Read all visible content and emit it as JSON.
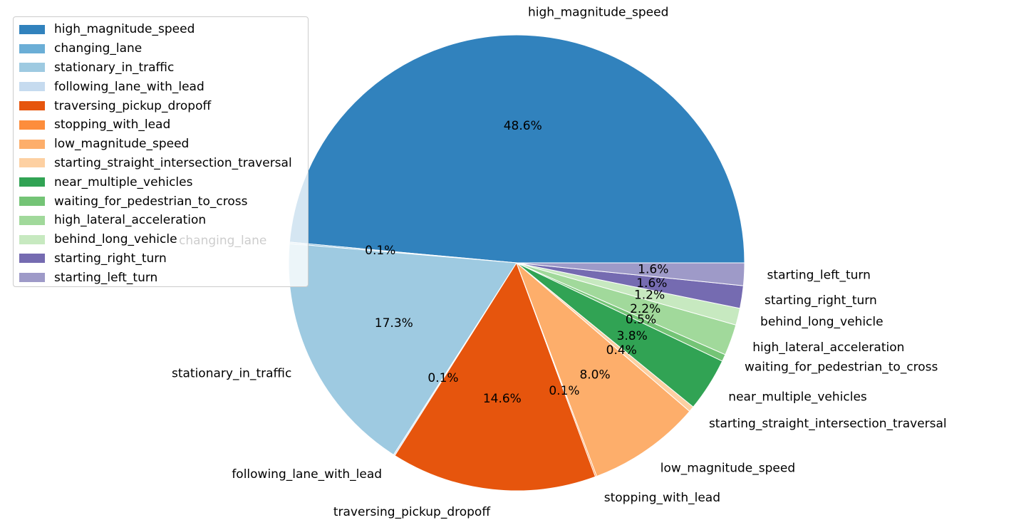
{
  "chart_data": {
    "type": "pie",
    "title": "",
    "slices": [
      {
        "label": "high_magnitude_speed",
        "pct_label": "48.6%",
        "value": 48.6,
        "color": "#3182bd"
      },
      {
        "label": "changing_lane",
        "pct_label": "0.1%",
        "value": 0.1,
        "color": "#6baed6"
      },
      {
        "label": "stationary_in_traffic",
        "pct_label": "17.3%",
        "value": 17.3,
        "color": "#9ecae1"
      },
      {
        "label": "following_lane_with_lead",
        "pct_label": "0.1%",
        "value": 0.1,
        "color": "#c6dbef"
      },
      {
        "label": "traversing_pickup_dropoff",
        "pct_label": "14.6%",
        "value": 14.6,
        "color": "#e6550d"
      },
      {
        "label": "stopping_with_lead",
        "pct_label": "0.1%",
        "value": 0.1,
        "color": "#fd8d3c"
      },
      {
        "label": "low_magnitude_speed",
        "pct_label": "8.0%",
        "value": 8.0,
        "color": "#fdae6b"
      },
      {
        "label": "starting_straight_intersection_traversal",
        "pct_label": "0.4%",
        "value": 0.4,
        "color": "#fdd0a2"
      },
      {
        "label": "near_multiple_vehicles",
        "pct_label": "3.8%",
        "value": 3.8,
        "color": "#31a354"
      },
      {
        "label": "waiting_for_pedestrian_to_cross",
        "pct_label": "0.5%",
        "value": 0.5,
        "color": "#74c476"
      },
      {
        "label": "high_lateral_acceleration",
        "pct_label": "2.2%",
        "value": 2.2,
        "color": "#a1d99b"
      },
      {
        "label": "behind_long_vehicle",
        "pct_label": "1.2%",
        "value": 1.2,
        "color": "#c7e9c0"
      },
      {
        "label": "starting_right_turn",
        "pct_label": "1.6%",
        "value": 1.6,
        "color": "#756bb1"
      },
      {
        "label": "starting_left_turn",
        "pct_label": "1.6%",
        "value": 1.6,
        "color": "#9e9ac8"
      }
    ],
    "legend_position": "top-left"
  }
}
